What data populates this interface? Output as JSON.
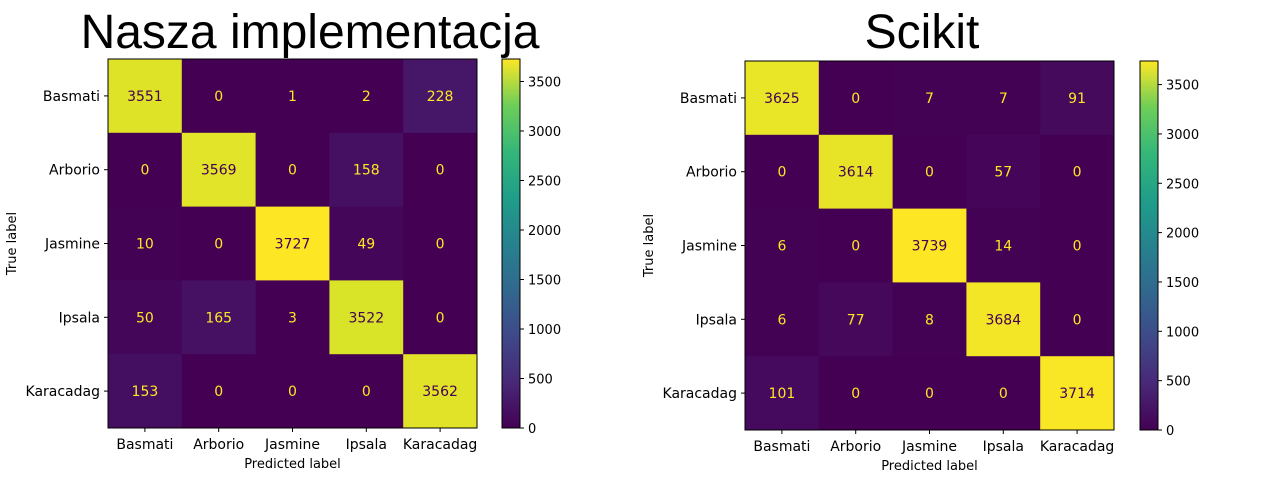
{
  "chart_data": [
    {
      "type": "heatmap",
      "title": "Nasza implementacja",
      "xlabel": "Predicted label",
      "ylabel": "True label",
      "categories_x": [
        "Basmati",
        "Arborio",
        "Jasmine",
        "Ipsala",
        "Karacadag"
      ],
      "categories_y": [
        "Basmati",
        "Arborio",
        "Jasmine",
        "Ipsala",
        "Karacadag"
      ],
      "values": [
        [
          3551,
          0,
          1,
          2,
          228
        ],
        [
          0,
          3569,
          0,
          158,
          0
        ],
        [
          10,
          0,
          3727,
          49,
          0
        ],
        [
          50,
          165,
          3,
          3522,
          0
        ],
        [
          153,
          0,
          0,
          0,
          3562
        ]
      ],
      "colormap": "viridis",
      "colorbar_range": [
        0,
        3727
      ],
      "colorbar_ticks": [
        0,
        500,
        1000,
        1500,
        2000,
        2500,
        3000,
        3500
      ]
    },
    {
      "type": "heatmap",
      "title": "Scikit",
      "xlabel": "Predicted label",
      "ylabel": "True label",
      "categories_x": [
        "Basmati",
        "Arborio",
        "Jasmine",
        "Ipsala",
        "Karacadag"
      ],
      "categories_y": [
        "Basmati",
        "Arborio",
        "Jasmine",
        "Ipsala",
        "Karacadag"
      ],
      "values": [
        [
          3625,
          0,
          7,
          7,
          91
        ],
        [
          0,
          3614,
          0,
          57,
          0
        ],
        [
          6,
          0,
          3739,
          14,
          0
        ],
        [
          6,
          77,
          8,
          3684,
          0
        ],
        [
          101,
          0,
          0,
          0,
          3714
        ]
      ],
      "colormap": "viridis",
      "colorbar_range": [
        0,
        3739
      ],
      "colorbar_ticks": [
        0,
        500,
        1000,
        1500,
        2000,
        2500,
        3000,
        3500
      ]
    }
  ],
  "colors": {
    "text_on_dark": "#fde725",
    "text_on_light": "#440154",
    "axis": "#000000"
  }
}
